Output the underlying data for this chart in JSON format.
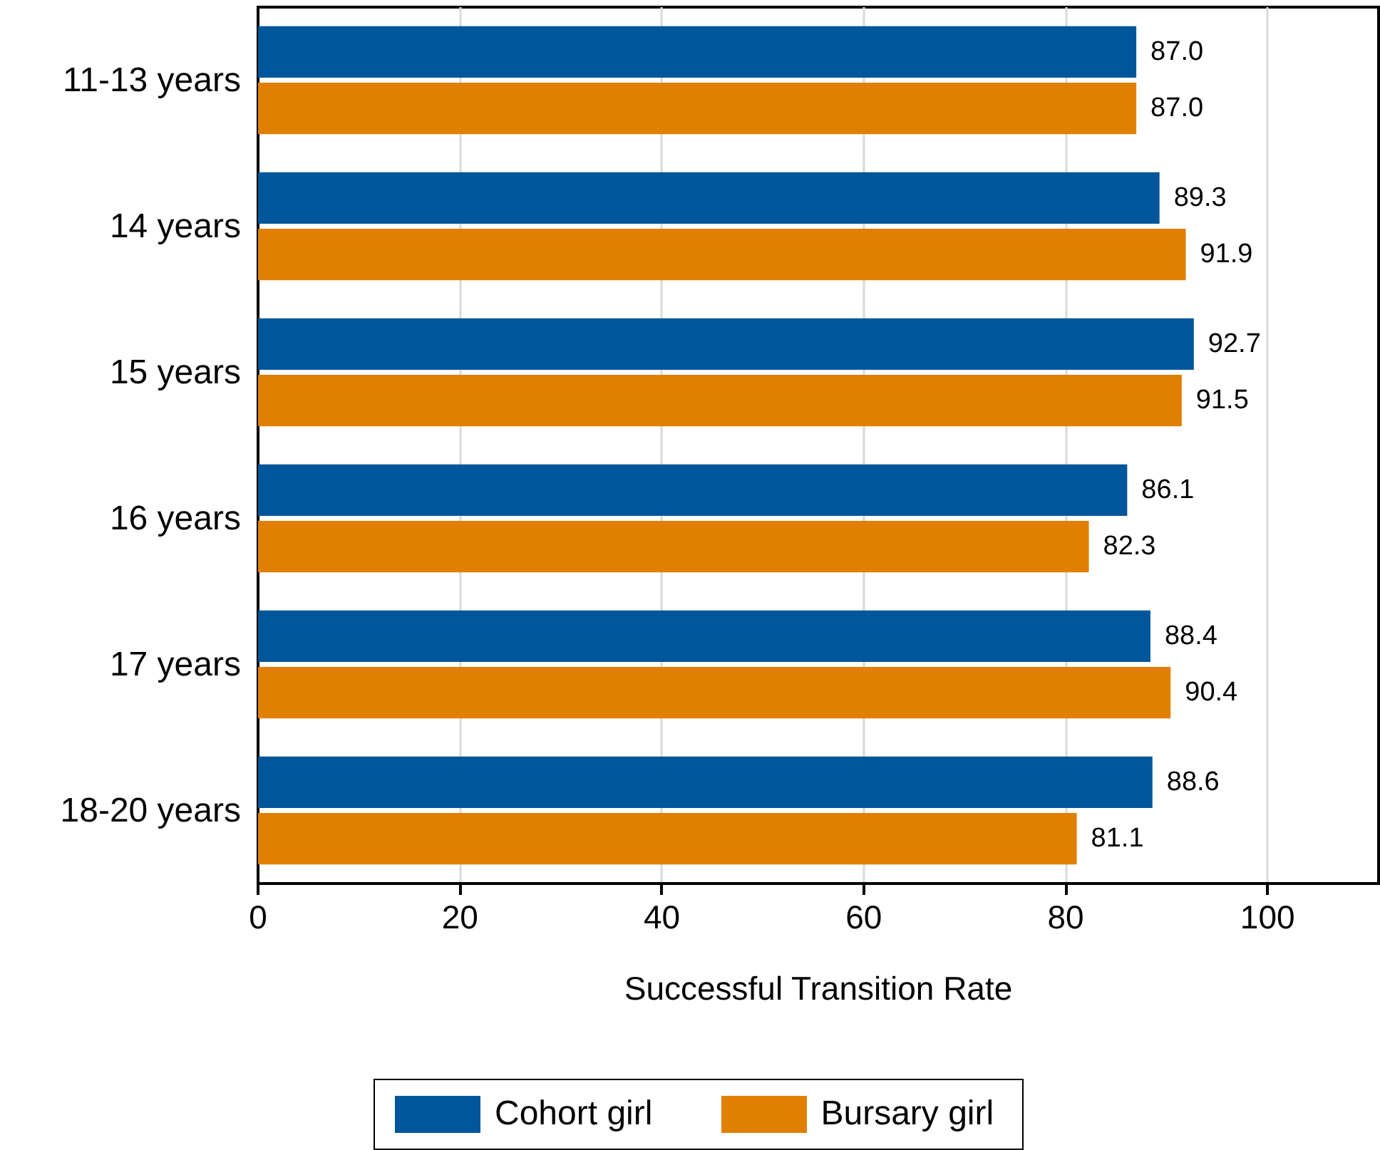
{
  "chart_data": {
    "type": "bar",
    "orientation": "horizontal",
    "xlabel": "Successful Transition Rate",
    "categories": [
      "11-13 years",
      "14 years",
      "15 years",
      "16 years",
      "17 years",
      "18-20 years"
    ],
    "series": [
      {
        "name": "Cohort girl",
        "color": "#00569b",
        "values": [
          87.0,
          89.3,
          92.7,
          86.1,
          88.4,
          88.6
        ],
        "value_labels": [
          "87.0",
          "89.3",
          "92.7",
          "86.1",
          "88.4",
          "88.6"
        ]
      },
      {
        "name": "Bursary girl",
        "color": "#e07f00",
        "values": [
          87.0,
          91.9,
          91.5,
          82.3,
          90.4,
          81.1
        ],
        "value_labels": [
          "87.0",
          "91.9",
          "91.5",
          "82.3",
          "90.4",
          "81.1"
        ]
      }
    ],
    "xlim": [
      0,
      111
    ],
    "xticks": [
      0,
      20,
      40,
      60,
      80,
      100
    ],
    "grid": "x",
    "legend": "bottom"
  }
}
